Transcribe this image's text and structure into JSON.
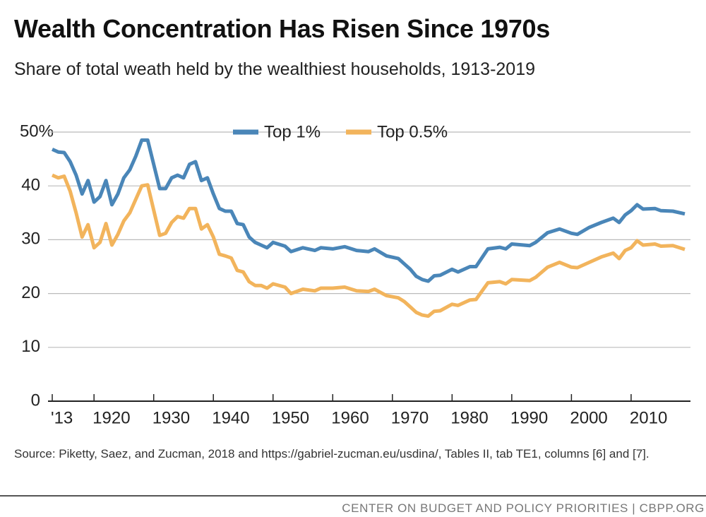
{
  "chart_data": {
    "type": "line",
    "title": "Wealth Concentration Has Risen Since 1970s",
    "subtitle": "Share of total weath held by the wealthiest households, 1913-2019",
    "source": "Source: Piketty, Saez, and Zucman, 2018 and https://gabriel-zucman.eu/usdina/, Tables II, tab TE1, columns [6] and [7].",
    "footer": "CENTER ON BUDGET AND POLICY PRIORITIES | CBPP.ORG",
    "x": [
      1913,
      1914,
      1915,
      1916,
      1917,
      1918,
      1919,
      1920,
      1921,
      1922,
      1923,
      1924,
      1925,
      1926,
      1927,
      1928,
      1929,
      1930,
      1931,
      1932,
      1933,
      1934,
      1935,
      1936,
      1937,
      1938,
      1939,
      1940,
      1941,
      1942,
      1943,
      1944,
      1945,
      1946,
      1947,
      1948,
      1949,
      1950,
      1952,
      1953,
      1955,
      1957,
      1958,
      1960,
      1962,
      1964,
      1966,
      1967,
      1969,
      1971,
      1972,
      1973,
      1974,
      1975,
      1976,
      1977,
      1978,
      1980,
      1981,
      1983,
      1984,
      1986,
      1988,
      1989,
      1990,
      1993,
      1994,
      1996,
      1998,
      2000,
      2001,
      2003,
      2005,
      2007,
      2008,
      2009,
      2010,
      2011,
      2012,
      2014,
      2015,
      2017,
      2019
    ],
    "series": [
      {
        "name": "Top 1%",
        "color": "#4a86b8",
        "values": [
          46.8,
          46.3,
          46.2,
          44.5,
          42,
          38.5,
          41,
          37,
          38,
          41,
          36.5,
          38.5,
          41.5,
          43,
          45.5,
          48.5,
          48.5,
          44,
          39.5,
          39.5,
          41.5,
          42,
          41.5,
          44,
          44.5,
          41,
          41.5,
          38.5,
          35.8,
          35.3,
          35.3,
          33,
          32.8,
          30.5,
          29.5,
          29,
          28.5,
          29.5,
          28.8,
          27.8,
          28.5,
          28,
          28.5,
          28.3,
          28.7,
          28,
          27.8,
          28.3,
          27,
          26.5,
          25.5,
          24.5,
          23.2,
          22.6,
          22.3,
          23.3,
          23.4,
          24.5,
          24,
          25,
          25,
          28.3,
          28.6,
          28.3,
          29.2,
          28.9,
          29.5,
          31.3,
          32,
          31.2,
          31,
          32.3,
          33.2,
          34,
          33.2,
          34.6,
          35.4,
          36.5,
          35.7,
          35.8,
          35.4,
          35.3,
          34.8
        ]
      },
      {
        "name": "Top 0.5%",
        "color": "#f2b45c",
        "values": [
          42,
          41.5,
          41.8,
          39,
          35,
          30.5,
          32.8,
          28.5,
          29.5,
          33,
          29,
          31,
          33.5,
          35,
          37.5,
          40,
          40.2,
          35.5,
          30.8,
          31.2,
          33.2,
          34.3,
          34,
          35.8,
          35.8,
          32,
          32.8,
          30.5,
          27.3,
          27,
          26.6,
          24.3,
          24,
          22.2,
          21.5,
          21.5,
          21,
          21.8,
          21.2,
          20,
          20.8,
          20.5,
          21,
          21,
          21.2,
          20.5,
          20.4,
          20.8,
          19.6,
          19.2,
          18.5,
          17.5,
          16.5,
          16,
          15.8,
          16.7,
          16.8,
          18,
          17.8,
          18.8,
          18.9,
          22,
          22.2,
          21.8,
          22.6,
          22.4,
          23,
          24.9,
          25.8,
          24.9,
          24.8,
          25.8,
          26.8,
          27.5,
          26.5,
          28,
          28.5,
          29.8,
          29,
          29.2,
          28.8,
          28.9,
          28.2
        ]
      }
    ],
    "xlim": [
      1913,
      2019
    ],
    "xticks": [
      {
        "value": 1913,
        "label": "'13"
      },
      1920,
      1930,
      1940,
      1950,
      1960,
      1970,
      1980,
      1990,
      2000,
      2010
    ],
    "ylim": [
      0,
      50
    ],
    "yticks": [
      0,
      10,
      20,
      30,
      40,
      {
        "value": 50,
        "label": "50%"
      }
    ],
    "grid": true,
    "legend": "top"
  }
}
